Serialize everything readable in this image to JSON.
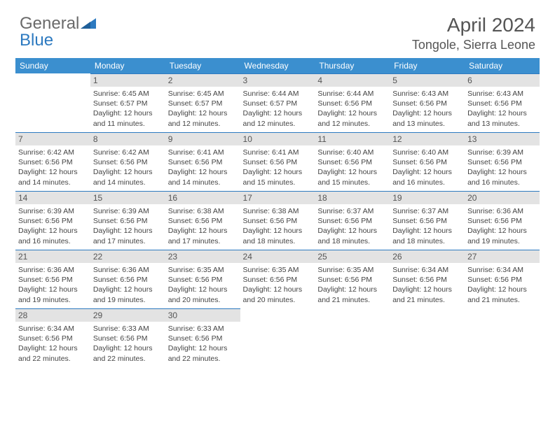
{
  "logo": {
    "word1": "General",
    "word2": "Blue"
  },
  "title": "April 2024",
  "location": "Tongole, Sierra Leone",
  "colors": {
    "header_bg": "#3b8fcf",
    "header_text": "#ffffff",
    "daynum_bg": "#e3e3e3",
    "border": "#2d7ac0",
    "text": "#444444",
    "logo_gray": "#6a6a6a",
    "logo_blue": "#2d7ac0",
    "background": "#ffffff"
  },
  "weekdays": [
    "Sunday",
    "Monday",
    "Tuesday",
    "Wednesday",
    "Thursday",
    "Friday",
    "Saturday"
  ],
  "month_start_weekday": 1,
  "days_in_month": 30,
  "days": {
    "1": {
      "sunrise": "6:45 AM",
      "sunset": "6:57 PM",
      "daylight": "12 hours and 11 minutes."
    },
    "2": {
      "sunrise": "6:45 AM",
      "sunset": "6:57 PM",
      "daylight": "12 hours and 12 minutes."
    },
    "3": {
      "sunrise": "6:44 AM",
      "sunset": "6:57 PM",
      "daylight": "12 hours and 12 minutes."
    },
    "4": {
      "sunrise": "6:44 AM",
      "sunset": "6:56 PM",
      "daylight": "12 hours and 12 minutes."
    },
    "5": {
      "sunrise": "6:43 AM",
      "sunset": "6:56 PM",
      "daylight": "12 hours and 13 minutes."
    },
    "6": {
      "sunrise": "6:43 AM",
      "sunset": "6:56 PM",
      "daylight": "12 hours and 13 minutes."
    },
    "7": {
      "sunrise": "6:42 AM",
      "sunset": "6:56 PM",
      "daylight": "12 hours and 14 minutes."
    },
    "8": {
      "sunrise": "6:42 AM",
      "sunset": "6:56 PM",
      "daylight": "12 hours and 14 minutes."
    },
    "9": {
      "sunrise": "6:41 AM",
      "sunset": "6:56 PM",
      "daylight": "12 hours and 14 minutes."
    },
    "10": {
      "sunrise": "6:41 AM",
      "sunset": "6:56 PM",
      "daylight": "12 hours and 15 minutes."
    },
    "11": {
      "sunrise": "6:40 AM",
      "sunset": "6:56 PM",
      "daylight": "12 hours and 15 minutes."
    },
    "12": {
      "sunrise": "6:40 AM",
      "sunset": "6:56 PM",
      "daylight": "12 hours and 16 minutes."
    },
    "13": {
      "sunrise": "6:39 AM",
      "sunset": "6:56 PM",
      "daylight": "12 hours and 16 minutes."
    },
    "14": {
      "sunrise": "6:39 AM",
      "sunset": "6:56 PM",
      "daylight": "12 hours and 16 minutes."
    },
    "15": {
      "sunrise": "6:39 AM",
      "sunset": "6:56 PM",
      "daylight": "12 hours and 17 minutes."
    },
    "16": {
      "sunrise": "6:38 AM",
      "sunset": "6:56 PM",
      "daylight": "12 hours and 17 minutes."
    },
    "17": {
      "sunrise": "6:38 AM",
      "sunset": "6:56 PM",
      "daylight": "12 hours and 18 minutes."
    },
    "18": {
      "sunrise": "6:37 AM",
      "sunset": "6:56 PM",
      "daylight": "12 hours and 18 minutes."
    },
    "19": {
      "sunrise": "6:37 AM",
      "sunset": "6:56 PM",
      "daylight": "12 hours and 18 minutes."
    },
    "20": {
      "sunrise": "6:36 AM",
      "sunset": "6:56 PM",
      "daylight": "12 hours and 19 minutes."
    },
    "21": {
      "sunrise": "6:36 AM",
      "sunset": "6:56 PM",
      "daylight": "12 hours and 19 minutes."
    },
    "22": {
      "sunrise": "6:36 AM",
      "sunset": "6:56 PM",
      "daylight": "12 hours and 19 minutes."
    },
    "23": {
      "sunrise": "6:35 AM",
      "sunset": "6:56 PM",
      "daylight": "12 hours and 20 minutes."
    },
    "24": {
      "sunrise": "6:35 AM",
      "sunset": "6:56 PM",
      "daylight": "12 hours and 20 minutes."
    },
    "25": {
      "sunrise": "6:35 AM",
      "sunset": "6:56 PM",
      "daylight": "12 hours and 21 minutes."
    },
    "26": {
      "sunrise": "6:34 AM",
      "sunset": "6:56 PM",
      "daylight": "12 hours and 21 minutes."
    },
    "27": {
      "sunrise": "6:34 AM",
      "sunset": "6:56 PM",
      "daylight": "12 hours and 21 minutes."
    },
    "28": {
      "sunrise": "6:34 AM",
      "sunset": "6:56 PM",
      "daylight": "12 hours and 22 minutes."
    },
    "29": {
      "sunrise": "6:33 AM",
      "sunset": "6:56 PM",
      "daylight": "12 hours and 22 minutes."
    },
    "30": {
      "sunrise": "6:33 AM",
      "sunset": "6:56 PM",
      "daylight": "12 hours and 22 minutes."
    }
  },
  "labels": {
    "sunrise_prefix": "Sunrise: ",
    "sunset_prefix": "Sunset: ",
    "daylight_prefix": "Daylight: "
  }
}
